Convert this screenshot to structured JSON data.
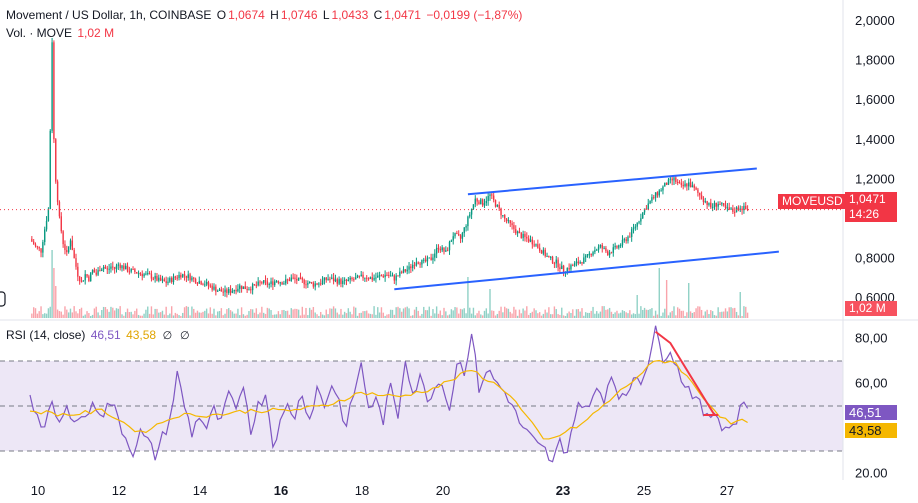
{
  "header": {
    "symbol_title": "Movement / US Dollar, 1h, COINBASE",
    "o_label": "O",
    "o_value": "1,0674",
    "h_label": "H",
    "h_value": "1,0746",
    "l_label": "L",
    "l_value": "1,0433",
    "c_label": "C",
    "c_value": "1,0471",
    "change": "−0,0199 (−1,87%)",
    "vol_label": "Vol. · MOVE",
    "vol_value": "1,02 M"
  },
  "rsi_legend": {
    "label": "RSI (14, close)",
    "rsi_value": "46,51",
    "ma_value": "43,58",
    "icon1": "∅",
    "icon2": "∅"
  },
  "price_badge": {
    "symbol": "MOVEUSD",
    "price": "1,0471",
    "countdown": "14:26"
  },
  "volume_badge": "1,02 M",
  "rsi_badges": {
    "rsi": "46,51",
    "ma": "43,58"
  },
  "colors": {
    "up": "#089981",
    "down": "#f23645",
    "trendline": "#2962ff",
    "rsi": "#7e57c2",
    "rsi_ma": "#f5b700",
    "rsi_fill": "#ede7f6",
    "arrow": "#f23645"
  },
  "chart_data": {
    "type": "candlestick",
    "price_axis": {
      "ticks": [
        "2,0000",
        "1,8000",
        "1,6000",
        "1,4000",
        "1,2000",
        "0,8000",
        "0,6000"
      ],
      "tick_values": [
        2.0,
        1.8,
        1.6,
        1.4,
        1.2,
        0.8,
        0.6
      ],
      "range": [
        0.5,
        2.0
      ]
    },
    "rsi_axis": {
      "ticks": [
        "80,00",
        "60,00",
        "20.00"
      ],
      "tick_values": [
        80,
        60,
        20
      ],
      "range": [
        20,
        85
      ],
      "bands": [
        70,
        50,
        30
      ]
    },
    "x_ticks": [
      "10",
      "12",
      "14",
      "16",
      "18",
      "20",
      "23",
      "25",
      "27"
    ],
    "x_bold": [
      "16",
      "23"
    ],
    "price_path": [
      [
        0,
        0.9
      ],
      [
        3,
        0.86
      ],
      [
        6,
        0.84
      ],
      [
        8,
        0.95
      ],
      [
        10,
        1.05
      ],
      [
        11,
        1.45
      ],
      [
        12,
        1.9
      ],
      [
        13,
        1.4
      ],
      [
        14,
        1.2
      ],
      [
        16,
        1.0
      ],
      [
        18,
        0.88
      ],
      [
        20,
        0.82
      ],
      [
        22,
        0.9
      ],
      [
        24,
        0.8
      ],
      [
        26,
        0.72
      ],
      [
        28,
        0.68
      ],
      [
        30,
        0.72
      ],
      [
        32,
        0.7
      ],
      [
        34,
        0.74
      ],
      [
        36,
        0.72
      ],
      [
        38,
        0.75
      ],
      [
        40,
        0.76
      ],
      [
        42,
        0.74
      ],
      [
        44,
        0.76
      ],
      [
        46,
        0.75
      ],
      [
        48,
        0.77
      ],
      [
        50,
        0.76
      ],
      [
        54,
        0.74
      ],
      [
        58,
        0.73
      ],
      [
        62,
        0.72
      ],
      [
        66,
        0.71
      ],
      [
        70,
        0.69
      ],
      [
        74,
        0.68
      ],
      [
        78,
        0.7
      ],
      [
        82,
        0.72
      ],
      [
        86,
        0.71
      ],
      [
        90,
        0.69
      ],
      [
        94,
        0.68
      ],
      [
        98,
        0.66
      ],
      [
        102,
        0.64
      ],
      [
        106,
        0.63
      ],
      [
        110,
        0.64
      ],
      [
        114,
        0.66
      ],
      [
        118,
        0.65
      ],
      [
        122,
        0.66
      ],
      [
        126,
        0.68
      ],
      [
        130,
        0.67
      ],
      [
        134,
        0.69
      ],
      [
        138,
        0.68
      ],
      [
        142,
        0.7
      ],
      [
        146,
        0.69
      ],
      [
        150,
        0.68
      ],
      [
        154,
        0.67
      ],
      [
        158,
        0.68
      ],
      [
        162,
        0.7
      ],
      [
        166,
        0.69
      ],
      [
        170,
        0.68
      ],
      [
        174,
        0.69
      ],
      [
        178,
        0.7
      ],
      [
        182,
        0.71
      ],
      [
        186,
        0.7
      ],
      [
        190,
        0.71
      ],
      [
        194,
        0.72
      ],
      [
        198,
        0.7
      ],
      [
        202,
        0.73
      ],
      [
        206,
        0.75
      ],
      [
        210,
        0.79
      ],
      [
        214,
        0.78
      ],
      [
        218,
        0.8
      ],
      [
        222,
        0.86
      ],
      [
        226,
        0.83
      ],
      [
        230,
        0.92
      ],
      [
        234,
        0.9
      ],
      [
        238,
        1.0
      ],
      [
        242,
        1.1
      ],
      [
        246,
        1.08
      ],
      [
        250,
        1.12
      ],
      [
        254,
        1.06
      ],
      [
        258,
        1.0
      ],
      [
        262,
        0.96
      ],
      [
        266,
        0.92
      ],
      [
        270,
        0.9
      ],
      [
        274,
        0.88
      ],
      [
        278,
        0.84
      ],
      [
        282,
        0.8
      ],
      [
        286,
        0.78
      ],
      [
        290,
        0.74
      ],
      [
        294,
        0.76
      ],
      [
        298,
        0.78
      ],
      [
        302,
        0.8
      ],
      [
        306,
        0.84
      ],
      [
        310,
        0.86
      ],
      [
        314,
        0.83
      ],
      [
        318,
        0.85
      ],
      [
        322,
        0.88
      ],
      [
        326,
        0.92
      ],
      [
        330,
        0.98
      ],
      [
        334,
        1.05
      ],
      [
        338,
        1.1
      ],
      [
        342,
        1.14
      ],
      [
        346,
        1.18
      ],
      [
        350,
        1.2
      ],
      [
        354,
        1.16
      ],
      [
        358,
        1.18
      ],
      [
        362,
        1.14
      ],
      [
        366,
        1.1
      ],
      [
        370,
        1.06
      ],
      [
        374,
        1.08
      ],
      [
        378,
        1.05
      ],
      [
        382,
        1.04
      ],
      [
        386,
        1.06
      ],
      [
        390,
        1.047
      ]
    ],
    "volume_spikes": [
      [
        12,
        1.0
      ],
      [
        13,
        0.7
      ],
      [
        14,
        0.4
      ],
      [
        238,
        0.55
      ],
      [
        250,
        0.35
      ],
      [
        330,
        0.25
      ],
      [
        342,
        0.7
      ],
      [
        346,
        0.5
      ],
      [
        358,
        0.45
      ],
      [
        386,
        0.3
      ]
    ],
    "rsi_path": [
      [
        0,
        56
      ],
      [
        4,
        45
      ],
      [
        8,
        40
      ],
      [
        12,
        50
      ],
      [
        16,
        42
      ],
      [
        20,
        48
      ],
      [
        24,
        46
      ],
      [
        28,
        44
      ],
      [
        32,
        48
      ],
      [
        36,
        50
      ],
      [
        40,
        47
      ],
      [
        44,
        52
      ],
      [
        48,
        44
      ],
      [
        52,
        36
      ],
      [
        56,
        30
      ],
      [
        60,
        38
      ],
      [
        64,
        34
      ],
      [
        68,
        28
      ],
      [
        72,
        36
      ],
      [
        76,
        44
      ],
      [
        80,
        64
      ],
      [
        84,
        50
      ],
      [
        88,
        38
      ],
      [
        92,
        46
      ],
      [
        96,
        40
      ],
      [
        100,
        48
      ],
      [
        104,
        42
      ],
      [
        108,
        56
      ],
      [
        112,
        46
      ],
      [
        116,
        60
      ],
      [
        120,
        40
      ],
      [
        124,
        50
      ],
      [
        128,
        56
      ],
      [
        132,
        34
      ],
      [
        136,
        42
      ],
      [
        140,
        50
      ],
      [
        144,
        46
      ],
      [
        148,
        56
      ],
      [
        152,
        44
      ],
      [
        156,
        58
      ],
      [
        160,
        50
      ],
      [
        164,
        60
      ],
      [
        168,
        52
      ],
      [
        172,
        40
      ],
      [
        176,
        56
      ],
      [
        180,
        68
      ],
      [
        184,
        50
      ],
      [
        188,
        52
      ],
      [
        192,
        44
      ],
      [
        196,
        58
      ],
      [
        200,
        46
      ],
      [
        204,
        72
      ],
      [
        208,
        56
      ],
      [
        212,
        62
      ],
      [
        216,
        54
      ],
      [
        220,
        58
      ],
      [
        224,
        62
      ],
      [
        228,
        48
      ],
      [
        232,
        70
      ],
      [
        236,
        66
      ],
      [
        240,
        82
      ],
      [
        244,
        58
      ],
      [
        248,
        66
      ],
      [
        252,
        62
      ],
      [
        256,
        58
      ],
      [
        260,
        54
      ],
      [
        264,
        46
      ],
      [
        268,
        40
      ],
      [
        272,
        36
      ],
      [
        276,
        32
      ],
      [
        280,
        30
      ],
      [
        284,
        24
      ],
      [
        288,
        34
      ],
      [
        292,
        30
      ],
      [
        296,
        46
      ],
      [
        300,
        52
      ],
      [
        304,
        48
      ],
      [
        308,
        58
      ],
      [
        312,
        54
      ],
      [
        316,
        64
      ],
      [
        320,
        56
      ],
      [
        324,
        52
      ],
      [
        328,
        64
      ],
      [
        332,
        62
      ],
      [
        336,
        70
      ],
      [
        340,
        83
      ],
      [
        344,
        72
      ],
      [
        348,
        76
      ],
      [
        352,
        66
      ],
      [
        356,
        60
      ],
      [
        360,
        56
      ],
      [
        364,
        50
      ],
      [
        368,
        44
      ],
      [
        372,
        48
      ],
      [
        376,
        42
      ],
      [
        380,
        40
      ],
      [
        384,
        44
      ],
      [
        388,
        54
      ],
      [
        390,
        46.5
      ]
    ],
    "rsi_ma_path": [
      [
        0,
        48
      ],
      [
        20,
        46
      ],
      [
        40,
        48
      ],
      [
        60,
        38
      ],
      [
        80,
        46
      ],
      [
        100,
        46
      ],
      [
        120,
        48
      ],
      [
        140,
        48
      ],
      [
        160,
        50
      ],
      [
        180,
        56
      ],
      [
        200,
        54
      ],
      [
        220,
        58
      ],
      [
        240,
        66
      ],
      [
        260,
        56
      ],
      [
        280,
        34
      ],
      [
        300,
        42
      ],
      [
        320,
        56
      ],
      [
        340,
        70
      ],
      [
        350,
        70
      ],
      [
        370,
        50
      ],
      [
        380,
        42
      ],
      [
        390,
        43.6
      ]
    ],
    "trendlines": [
      {
        "from": [
          238,
          1.125
        ],
        "to": [
          395,
          1.255
        ]
      },
      {
        "from": [
          198,
          0.645
        ],
        "to": [
          407,
          0.835
        ]
      }
    ],
    "arrow_segments": [
      [
        [
          340,
          83
        ],
        [
          348,
          78
        ],
        [
          372,
          46
        ]
      ],
      [
        [
          366,
          46
        ],
        [
          374,
          46
        ]
      ]
    ]
  }
}
